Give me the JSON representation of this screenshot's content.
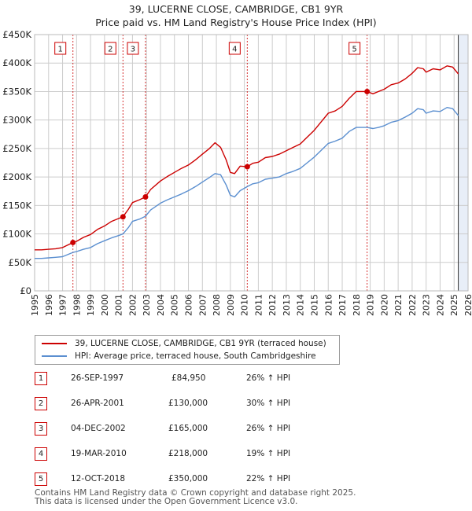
{
  "title": "39, LUCERNE CLOSE, CAMBRIDGE, CB1 9YR",
  "subtitle": "Price paid vs. HM Land Registry's House Price Index (HPI)",
  "colors": {
    "property": "#cc0000",
    "hpi": "#5b8fd0",
    "shade": "#e8eef8",
    "grid": "#cccccc",
    "marker": "#cc0000"
  },
  "chart_data": {
    "type": "line",
    "title": "Price paid vs. HM Land Registry's House Price Index (HPI)",
    "ylim": [
      0,
      450000
    ],
    "xlim": [
      1995,
      2026
    ],
    "y_ticks": [
      0,
      50000,
      100000,
      150000,
      200000,
      250000,
      300000,
      350000,
      400000,
      450000
    ],
    "y_tick_labels": [
      "£0",
      "£50K",
      "£100K",
      "£150K",
      "£200K",
      "£250K",
      "£300K",
      "£350K",
      "£400K",
      "£450K"
    ],
    "x_ticks": [
      1995,
      1996,
      1997,
      1998,
      1999,
      2000,
      2001,
      2002,
      2003,
      2004,
      2005,
      2006,
      2007,
      2008,
      2009,
      2010,
      2011,
      2012,
      2013,
      2014,
      2015,
      2016,
      2017,
      2018,
      2019,
      2020,
      2021,
      2022,
      2023,
      2024,
      2025,
      2026
    ],
    "x_tick_labels": [
      "1995",
      "1996",
      "1997",
      "1998",
      "1999",
      "2000",
      "2001",
      "2002",
      "2003",
      "2004",
      "2005",
      "2006",
      "2007",
      "2008",
      "2009",
      "2010",
      "2011",
      "2012",
      "2013",
      "2014",
      "2015",
      "2016",
      "2017",
      "2018",
      "2019",
      "2020",
      "2021",
      "2022",
      "2023",
      "2024",
      "2025",
      "2026"
    ],
    "shaded_ranges": [
      [
        1997.74,
        1997.74
      ],
      [
        2001.32,
        2001.32
      ],
      [
        2002.93,
        2002.93
      ],
      [
        2010.21,
        2010.21
      ],
      [
        2018.78,
        2018.78
      ],
      [
        2025.3,
        2026.0
      ]
    ],
    "series": [
      {
        "name": "39, LUCERNE CLOSE, CAMBRIDGE, CB1 9YR (terraced house)",
        "x": [
          1995,
          1995.5,
          1996,
          1996.5,
          1997,
          1997.74,
          1998,
          1998.5,
          1999,
          1999.5,
          2000,
          2000.5,
          2001,
          2001.32,
          2001.7,
          2002,
          2002.5,
          2002.93,
          2003.3,
          2004,
          2004.5,
          2005,
          2005.5,
          2006,
          2006.5,
          2007,
          2007.5,
          2007.9,
          2008.3,
          2008.7,
          2009,
          2009.3,
          2009.7,
          2010.21,
          2010.6,
          2011,
          2011.5,
          2012,
          2012.5,
          2013,
          2013.5,
          2014,
          2014.5,
          2015,
          2015.5,
          2016,
          2016.5,
          2017,
          2017.5,
          2018,
          2018.78,
          2019.2,
          2019.6,
          2020,
          2020.5,
          2021,
          2021.5,
          2022,
          2022.4,
          2022.8,
          2023,
          2023.5,
          2024,
          2024.5,
          2024.9,
          2025.3
        ],
        "values": [
          72000,
          72000,
          73000,
          74000,
          76000,
          84950,
          87000,
          94000,
          99000,
          108000,
          114000,
          122000,
          127000,
          130000,
          143000,
          155000,
          160000,
          165000,
          178000,
          193000,
          201000,
          208000,
          215000,
          221000,
          230000,
          240000,
          250000,
          260000,
          252000,
          230000,
          208000,
          206000,
          219000,
          218000,
          224000,
          226000,
          234000,
          236000,
          240000,
          246000,
          252000,
          258000,
          270000,
          282000,
          297000,
          312000,
          316000,
          324000,
          338000,
          350000,
          350000,
          346000,
          350000,
          354000,
          362000,
          365000,
          372000,
          382000,
          392000,
          390000,
          384000,
          390000,
          388000,
          395000,
          393000,
          381000
        ]
      },
      {
        "name": "HPI: Average price, terraced house, South Cambridgeshire",
        "x": [
          1995,
          1995.5,
          1996,
          1996.5,
          1997,
          1997.74,
          1998,
          1998.5,
          1999,
          1999.5,
          2000,
          2000.5,
          2001,
          2001.32,
          2001.7,
          2002,
          2002.5,
          2002.93,
          2003.3,
          2004,
          2004.5,
          2005,
          2005.5,
          2006,
          2006.5,
          2007,
          2007.5,
          2007.9,
          2008.3,
          2008.7,
          2009,
          2009.3,
          2009.7,
          2010.21,
          2010.6,
          2011,
          2011.5,
          2012,
          2012.5,
          2013,
          2013.5,
          2014,
          2014.5,
          2015,
          2015.5,
          2016,
          2016.5,
          2017,
          2017.5,
          2018,
          2018.78,
          2019.2,
          2019.6,
          2020,
          2020.5,
          2021,
          2021.5,
          2022,
          2022.4,
          2022.8,
          2023,
          2023.5,
          2024,
          2024.5,
          2024.9,
          2025.3
        ],
        "values": [
          57000,
          57000,
          58000,
          59000,
          60000,
          67500,
          69000,
          73000,
          76000,
          83000,
          88000,
          93000,
          97000,
          100000,
          111000,
          122000,
          126000,
          131000,
          142000,
          154000,
          160000,
          165000,
          170000,
          176000,
          183000,
          191000,
          199000,
          206000,
          204000,
          186000,
          168000,
          165000,
          176000,
          183000,
          188000,
          190000,
          196000,
          198000,
          200000,
          206000,
          210000,
          215000,
          225000,
          235000,
          247000,
          259000,
          263000,
          268000,
          280000,
          287000,
          287000,
          285000,
          287000,
          290000,
          296000,
          299000,
          305000,
          312000,
          320000,
          318000,
          312000,
          316000,
          315000,
          322000,
          320000,
          308000
        ]
      }
    ],
    "markers": [
      {
        "label": "1",
        "x": 1997.74,
        "value": 84950
      },
      {
        "label": "2",
        "x": 2001.32,
        "value": 130000
      },
      {
        "label": "3",
        "x": 2002.93,
        "value": 165000
      },
      {
        "label": "4",
        "x": 2010.21,
        "value": 218000
      },
      {
        "label": "5",
        "x": 2018.78,
        "value": 350000
      }
    ]
  },
  "legend": {
    "property": "39, LUCERNE CLOSE, CAMBRIDGE, CB1 9YR (terraced house)",
    "hpi": "HPI: Average price, terraced house, South Cambridgeshire"
  },
  "sales": [
    {
      "num": "1",
      "date": "26-SEP-1997",
      "price": "£84,950",
      "hpi": "26% ↑ HPI"
    },
    {
      "num": "2",
      "date": "26-APR-2001",
      "price": "£130,000",
      "hpi": "30% ↑ HPI"
    },
    {
      "num": "3",
      "date": "04-DEC-2002",
      "price": "£165,000",
      "hpi": "26% ↑ HPI"
    },
    {
      "num": "4",
      "date": "19-MAR-2010",
      "price": "£218,000",
      "hpi": "19% ↑ HPI"
    },
    {
      "num": "5",
      "date": "12-OCT-2018",
      "price": "£350,000",
      "hpi": "22% ↑ HPI"
    }
  ],
  "footer": {
    "line1": "Contains HM Land Registry data © Crown copyright and database right 2025.",
    "line2": "This data is licensed under the Open Government Licence v3.0."
  }
}
